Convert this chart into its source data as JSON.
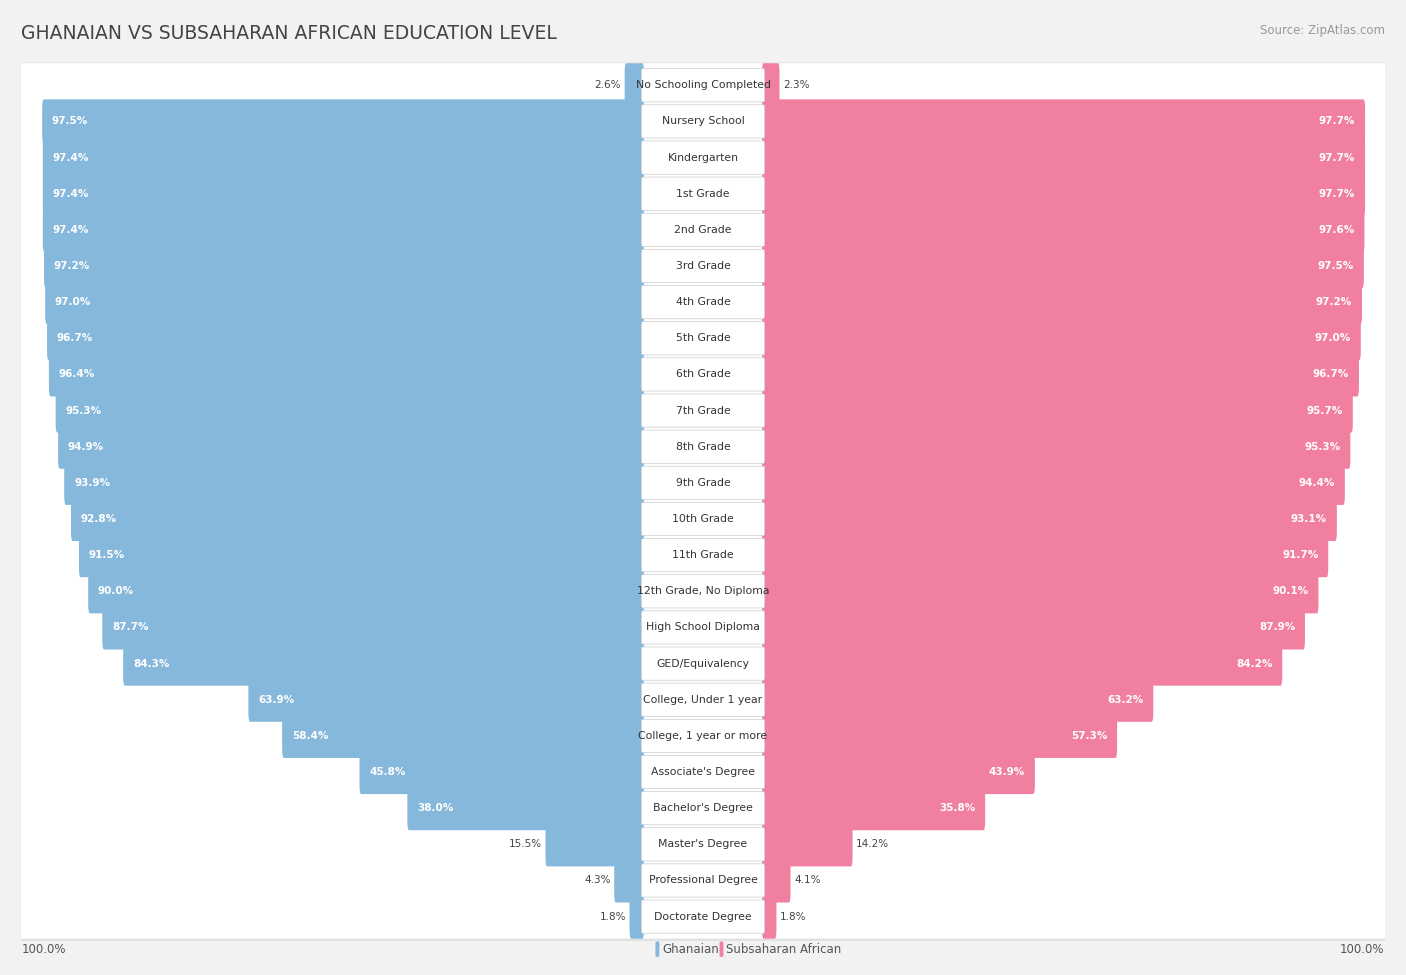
{
  "title": "GHANAIAN VS SUBSAHARAN AFRICAN EDUCATION LEVEL",
  "source": "Source: ZipAtlas.com",
  "categories": [
    "No Schooling Completed",
    "Nursery School",
    "Kindergarten",
    "1st Grade",
    "2nd Grade",
    "3rd Grade",
    "4th Grade",
    "5th Grade",
    "6th Grade",
    "7th Grade",
    "8th Grade",
    "9th Grade",
    "10th Grade",
    "11th Grade",
    "12th Grade, No Diploma",
    "High School Diploma",
    "GED/Equivalency",
    "College, Under 1 year",
    "College, 1 year or more",
    "Associate's Degree",
    "Bachelor's Degree",
    "Master's Degree",
    "Professional Degree",
    "Doctorate Degree"
  ],
  "ghanaian": [
    2.6,
    97.5,
    97.4,
    97.4,
    97.4,
    97.2,
    97.0,
    96.7,
    96.4,
    95.3,
    94.9,
    93.9,
    92.8,
    91.5,
    90.0,
    87.7,
    84.3,
    63.9,
    58.4,
    45.8,
    38.0,
    15.5,
    4.3,
    1.8
  ],
  "subsaharan": [
    2.3,
    97.7,
    97.7,
    97.7,
    97.6,
    97.5,
    97.2,
    97.0,
    96.7,
    95.7,
    95.3,
    94.4,
    93.1,
    91.7,
    90.1,
    87.9,
    84.2,
    63.2,
    57.3,
    43.9,
    35.8,
    14.2,
    4.1,
    1.8
  ],
  "bar_color_ghanaian": "#85b8db",
  "bar_color_subsaharan": "#f07fa0",
  "background_color": "#f2f2f2",
  "row_bg_light": "#ffffff",
  "row_bg_dark": "#ebebeb",
  "legend_ghanaian": "Ghanaian",
  "legend_subsaharan": "Subsaharan African",
  "label_box_color": "#f5f5f5",
  "label_box_edge": "#dddddd"
}
